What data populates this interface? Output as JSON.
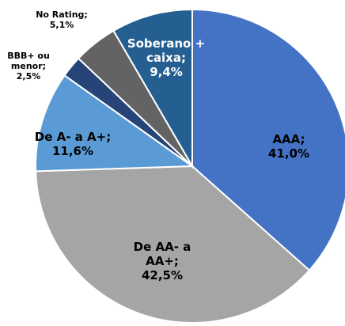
{
  "chart_data": {
    "type": "pie",
    "categories": [
      "AAA;",
      "De AA- a AA+;",
      "De A- a A+;",
      "BBB+ ou menor;",
      "No Rating;",
      "Soberano + caixa;"
    ],
    "values": [
      41.0,
      42.5,
      11.6,
      2.5,
      5.1,
      9.4
    ],
    "value_labels": [
      "41,0%",
      "42,5%",
      "11,6%",
      "2,5%",
      "5,1%",
      "9,4%"
    ],
    "colors": [
      "#4472c4",
      "#a5a5a5",
      "#5b9bd5",
      "#264478",
      "#636363",
      "#255e91"
    ]
  }
}
